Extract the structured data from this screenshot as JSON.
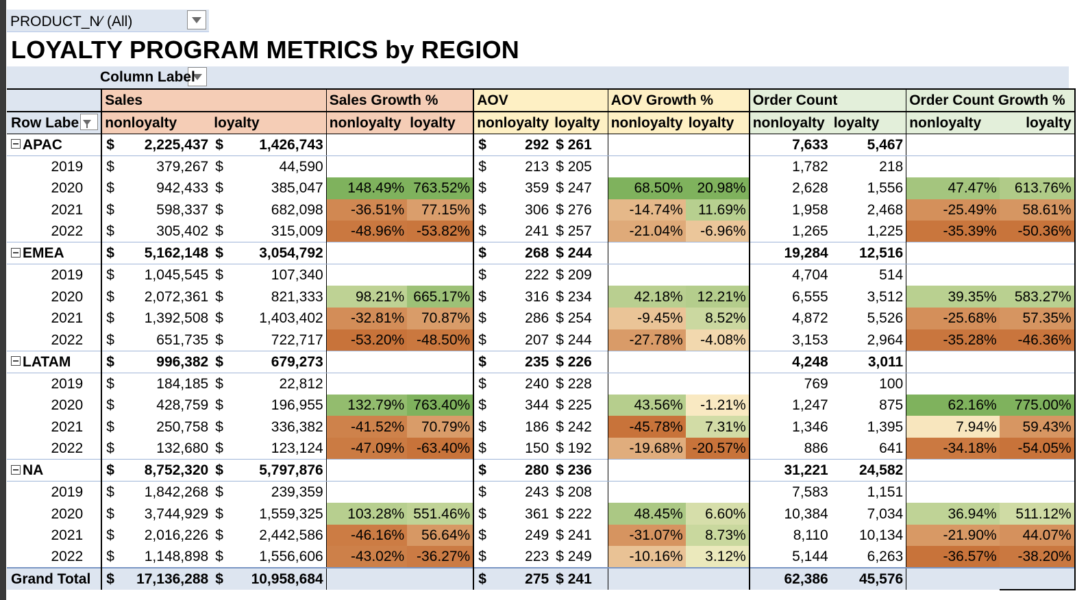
{
  "filter": {
    "field": "PRODUCT_N⁄",
    "value": "(All)"
  },
  "title": "LOYALTY PROGRAM METRICS by REGION",
  "column_labels": "Column Label",
  "row_labels": "Row Labe",
  "headers": {
    "sales": "Sales",
    "sales_growth": "Sales Growth %",
    "aov": "AOV",
    "aov_growth": "AOV Growth %",
    "order_count": "Order Count",
    "order_count_growth": "Order Count Growth %",
    "nonloyalty": "nonloyalty",
    "loyalty": "loyalty"
  },
  "currency": "$",
  "rows": [
    {
      "type": "region",
      "label": "APAC",
      "s_n": "2,225,437",
      "s_l": "1,426,743",
      "sg_n": "",
      "sg_l": "",
      "a_n": "292",
      "a_l": "$ 261",
      "ag_n": "",
      "ag_l": "",
      "o_n": "7,633",
      "o_l": "5,467",
      "og_n": "",
      "og_l": ""
    },
    {
      "type": "year",
      "label": "2019",
      "s_n": "379,267",
      "s_l": "44,590",
      "sg_n": "",
      "sg_l": "",
      "a_n": "213",
      "a_l": "$ 205",
      "ag_n": "",
      "ag_l": "",
      "o_n": "1,782",
      "o_l": "218",
      "og_n": "",
      "og_l": ""
    },
    {
      "type": "year",
      "label": "2020",
      "s_n": "942,433",
      "s_l": "385,047",
      "sg_n": "148.49%",
      "sg_l": "763.52%",
      "a_n": "359",
      "a_l": "$ 247",
      "ag_n": "68.50%",
      "ag_l": "20.98%",
      "o_n": "2,628",
      "o_l": "1,556",
      "og_n": "47.47%",
      "og_l": "613.76%"
    },
    {
      "type": "year",
      "label": "2021",
      "s_n": "598,337",
      "s_l": "682,098",
      "sg_n": "-36.51%",
      "sg_l": "77.15%",
      "a_n": "306",
      "a_l": "$ 276",
      "ag_n": "-14.74%",
      "ag_l": "11.69%",
      "o_n": "1,958",
      "o_l": "2,468",
      "og_n": "-25.49%",
      "og_l": "58.61%"
    },
    {
      "type": "year",
      "label": "2022",
      "s_n": "305,402",
      "s_l": "315,009",
      "sg_n": "-48.96%",
      "sg_l": "-53.82%",
      "a_n": "241",
      "a_l": "$ 257",
      "ag_n": "-21.04%",
      "ag_l": "-6.96%",
      "o_n": "1,265",
      "o_l": "1,225",
      "og_n": "-35.39%",
      "og_l": "-50.36%"
    },
    {
      "type": "region",
      "label": "EMEA",
      "s_n": "5,162,148",
      "s_l": "3,054,792",
      "sg_n": "",
      "sg_l": "",
      "a_n": "268",
      "a_l": "$ 244",
      "ag_n": "",
      "ag_l": "",
      "o_n": "19,284",
      "o_l": "12,516",
      "og_n": "",
      "og_l": ""
    },
    {
      "type": "year",
      "label": "2019",
      "s_n": "1,045,545",
      "s_l": "107,340",
      "sg_n": "",
      "sg_l": "",
      "a_n": "222",
      "a_l": "$ 209",
      "ag_n": "",
      "ag_l": "",
      "o_n": "4,704",
      "o_l": "514",
      "og_n": "",
      "og_l": ""
    },
    {
      "type": "year",
      "label": "2020",
      "s_n": "2,072,361",
      "s_l": "821,333",
      "sg_n": "98.21%",
      "sg_l": "665.17%",
      "a_n": "316",
      "a_l": "$ 234",
      "ag_n": "42.18%",
      "ag_l": "12.21%",
      "o_n": "6,555",
      "o_l": "3,512",
      "og_n": "39.35%",
      "og_l": "583.27%"
    },
    {
      "type": "year",
      "label": "2021",
      "s_n": "1,392,508",
      "s_l": "1,403,402",
      "sg_n": "-32.81%",
      "sg_l": "70.87%",
      "a_n": "286",
      "a_l": "$ 254",
      "ag_n": "-9.45%",
      "ag_l": "8.52%",
      "o_n": "4,872",
      "o_l": "5,526",
      "og_n": "-25.68%",
      "og_l": "57.35%"
    },
    {
      "type": "year",
      "label": "2022",
      "s_n": "651,735",
      "s_l": "722,717",
      "sg_n": "-53.20%",
      "sg_l": "-48.50%",
      "a_n": "207",
      "a_l": "$ 244",
      "ag_n": "-27.78%",
      "ag_l": "-4.08%",
      "o_n": "3,153",
      "o_l": "2,964",
      "og_n": "-35.28%",
      "og_l": "-46.36%"
    },
    {
      "type": "region",
      "label": "LATAM",
      "s_n": "996,382",
      "s_l": "679,273",
      "sg_n": "",
      "sg_l": "",
      "a_n": "235",
      "a_l": "$ 226",
      "ag_n": "",
      "ag_l": "",
      "o_n": "4,248",
      "o_l": "3,011",
      "og_n": "",
      "og_l": ""
    },
    {
      "type": "year",
      "label": "2019",
      "s_n": "184,185",
      "s_l": "22,812",
      "sg_n": "",
      "sg_l": "",
      "a_n": "240",
      "a_l": "$ 228",
      "ag_n": "",
      "ag_l": "",
      "o_n": "769",
      "o_l": "100",
      "og_n": "",
      "og_l": ""
    },
    {
      "type": "year",
      "label": "2020",
      "s_n": "428,759",
      "s_l": "196,955",
      "sg_n": "132.79%",
      "sg_l": "763.40%",
      "a_n": "344",
      "a_l": "$ 225",
      "ag_n": "43.56%",
      "ag_l": "-1.21%",
      "o_n": "1,247",
      "o_l": "875",
      "og_n": "62.16%",
      "og_l": "775.00%"
    },
    {
      "type": "year",
      "label": "2021",
      "s_n": "250,758",
      "s_l": "336,382",
      "sg_n": "-41.52%",
      "sg_l": "70.79%",
      "a_n": "186",
      "a_l": "$ 242",
      "ag_n": "-45.78%",
      "ag_l": "7.31%",
      "o_n": "1,346",
      "o_l": "1,395",
      "og_n": "7.94%",
      "og_l": "59.43%"
    },
    {
      "type": "year",
      "label": "2022",
      "s_n": "132,680",
      "s_l": "123,124",
      "sg_n": "-47.09%",
      "sg_l": "-63.40%",
      "a_n": "150",
      "a_l": "$ 192",
      "ag_n": "-19.68%",
      "ag_l": "-20.57%",
      "o_n": "886",
      "o_l": "641",
      "og_n": "-34.18%",
      "og_l": "-54.05%"
    },
    {
      "type": "region",
      "label": "NA",
      "s_n": "8,752,320",
      "s_l": "5,797,876",
      "sg_n": "",
      "sg_l": "",
      "a_n": "280",
      "a_l": "$ 236",
      "ag_n": "",
      "ag_l": "",
      "o_n": "31,221",
      "o_l": "24,582",
      "og_n": "",
      "og_l": ""
    },
    {
      "type": "year",
      "label": "2019",
      "s_n": "1,842,268",
      "s_l": "239,359",
      "sg_n": "",
      "sg_l": "",
      "a_n": "243",
      "a_l": "$ 208",
      "ag_n": "",
      "ag_l": "",
      "o_n": "7,583",
      "o_l": "1,151",
      "og_n": "",
      "og_l": ""
    },
    {
      "type": "year",
      "label": "2020",
      "s_n": "3,744,929",
      "s_l": "1,559,325",
      "sg_n": "103.28%",
      "sg_l": "551.46%",
      "a_n": "361",
      "a_l": "$ 222",
      "ag_n": "48.45%",
      "ag_l": "6.60%",
      "o_n": "10,384",
      "o_l": "7,034",
      "og_n": "36.94%",
      "og_l": "511.12%"
    },
    {
      "type": "year",
      "label": "2021",
      "s_n": "2,016,226",
      "s_l": "2,442,586",
      "sg_n": "-46.16%",
      "sg_l": "56.64%",
      "a_n": "249",
      "a_l": "$ 241",
      "ag_n": "-31.07%",
      "ag_l": "8.73%",
      "o_n": "8,110",
      "o_l": "10,134",
      "og_n": "-21.90%",
      "og_l": "44.07%"
    },
    {
      "type": "year",
      "label": "2022",
      "s_n": "1,148,898",
      "s_l": "1,556,606",
      "sg_n": "-43.02%",
      "sg_l": "-36.27%",
      "a_n": "223",
      "a_l": "$ 249",
      "ag_n": "-10.16%",
      "ag_l": "3.12%",
      "o_n": "5,144",
      "o_l": "6,263",
      "og_n": "-36.57%",
      "og_l": "-38.20%"
    },
    {
      "type": "grand",
      "label": "Grand Total",
      "s_n": "17,136,288",
      "s_l": "10,958,684",
      "sg_n": "",
      "sg_l": "",
      "a_n": "275",
      "a_l": "$ 241",
      "ag_n": "",
      "ag_l": "",
      "o_n": "62,386",
      "o_l": "45,576",
      "og_n": "",
      "og_l": ""
    }
  ],
  "colors": {
    "header_band": "#dde5f0",
    "sales_header": "#f5cdb6",
    "aov_header": "#fef0c4",
    "order_header": "#e3efda",
    "scale_low": "#c8733a",
    "scale_mid": "#fdf2cc",
    "scale_high": "#7fb25d"
  }
}
